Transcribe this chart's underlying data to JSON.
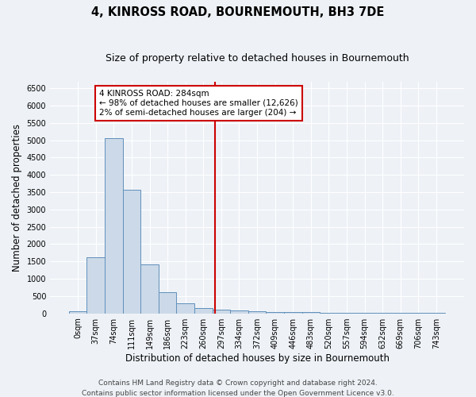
{
  "title": "4, KINROSS ROAD, BOURNEMOUTH, BH3 7DE",
  "subtitle": "Size of property relative to detached houses in Bournemouth",
  "xlabel": "Distribution of detached houses by size in Bournemouth",
  "ylabel": "Number of detached properties",
  "bar_labels": [
    "0sqm",
    "37sqm",
    "74sqm",
    "111sqm",
    "149sqm",
    "186sqm",
    "223sqm",
    "260sqm",
    "297sqm",
    "334sqm",
    "372sqm",
    "409sqm",
    "446sqm",
    "483sqm",
    "520sqm",
    "557sqm",
    "594sqm",
    "632sqm",
    "669sqm",
    "706sqm",
    "743sqm"
  ],
  "bar_values": [
    60,
    1630,
    5060,
    3580,
    1410,
    615,
    290,
    140,
    100,
    75,
    50,
    35,
    30,
    25,
    10,
    5,
    5,
    5,
    5,
    5,
    5
  ],
  "bar_color": "#ccd9e8",
  "bar_edge_color": "#6090bb",
  "ylim": [
    0,
    6700
  ],
  "yticks": [
    0,
    500,
    1000,
    1500,
    2000,
    2500,
    3000,
    3500,
    4000,
    4500,
    5000,
    5500,
    6000,
    6500
  ],
  "vline_color": "#cc0000",
  "annotation_line1": "4 KINROSS ROAD: 284sqm",
  "annotation_line2": "← 98% of detached houses are smaller (12,626)",
  "annotation_line3": "2% of semi-detached houses are larger (204) →",
  "annotation_box_color": "#cc0000",
  "footer_line1": "Contains HM Land Registry data © Crown copyright and database right 2024.",
  "footer_line2": "Contains public sector information licensed under the Open Government Licence v3.0.",
  "bg_color": "#eef2f7",
  "grid_color": "#ffffff",
  "title_fontsize": 10.5,
  "subtitle_fontsize": 9,
  "axis_label_fontsize": 8.5,
  "tick_fontsize": 7,
  "footer_fontsize": 6.5,
  "annotation_fontsize": 7.5
}
